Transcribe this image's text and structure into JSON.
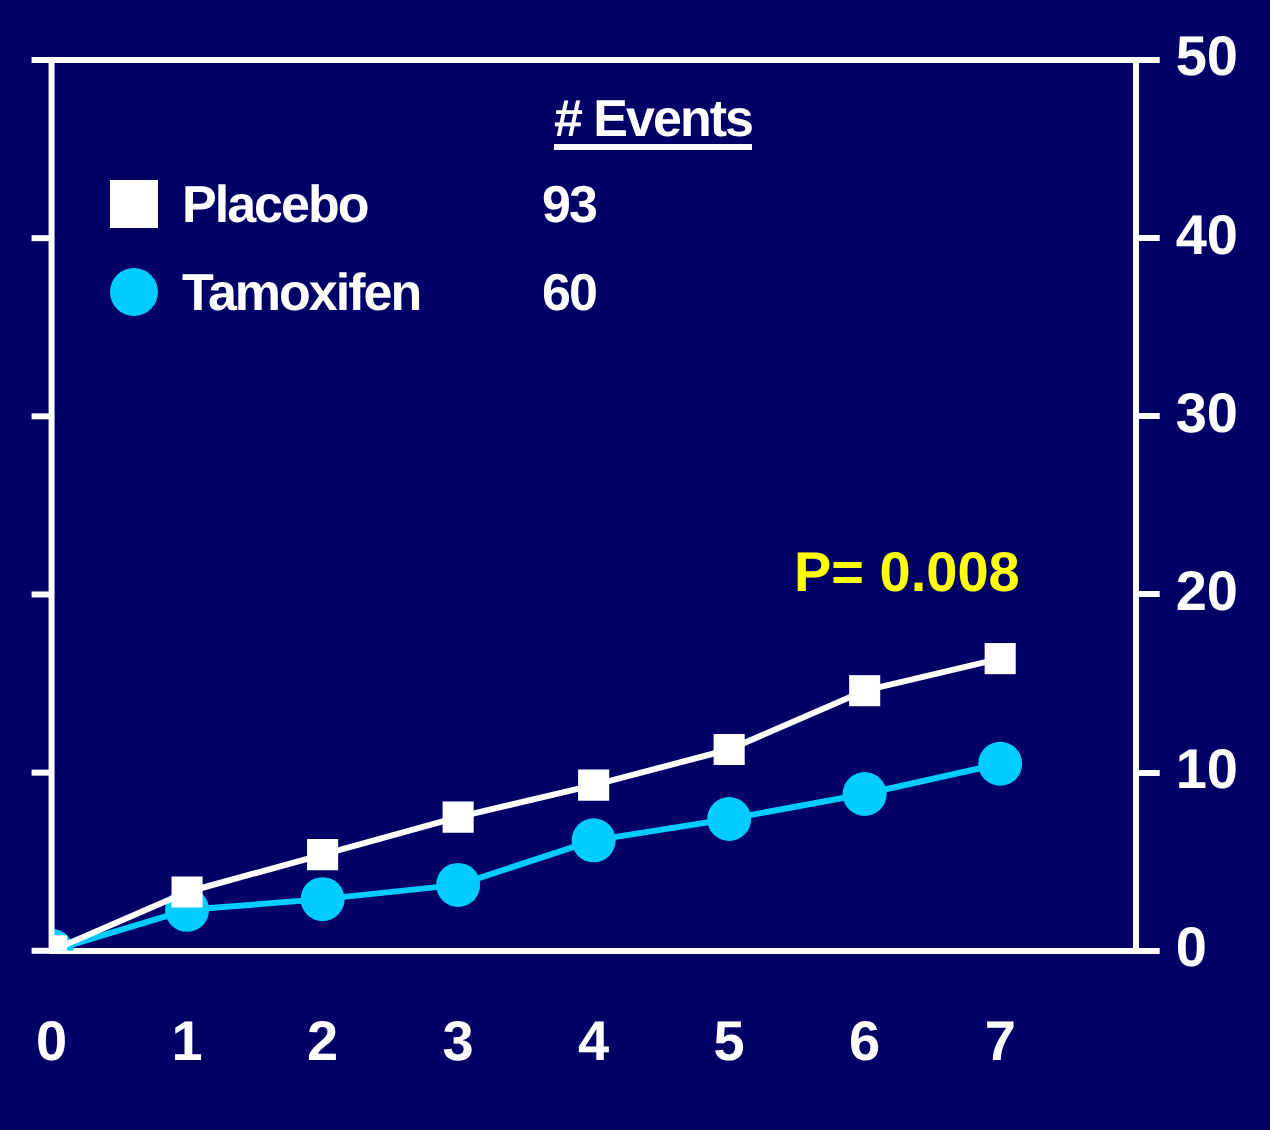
{
  "chart_data": {
    "type": "line",
    "x": [
      0,
      1,
      2,
      3,
      4,
      5,
      6,
      7
    ],
    "series": [
      {
        "name": "Placebo",
        "color": "#ffffff",
        "marker": "square",
        "values": [
          0,
          3.3,
          5.4,
          7.5,
          9.3,
          11.3,
          14.6,
          16.4
        ]
      },
      {
        "name": "Tamoxifen",
        "color": "#00ccff",
        "marker": "circle",
        "values": [
          0,
          2.3,
          2.9,
          3.7,
          6.2,
          7.4,
          8.8,
          10.5
        ]
      }
    ],
    "xlim": [
      0,
      8
    ],
    "xticks": [
      0,
      1,
      2,
      3,
      4,
      5,
      6,
      7,
      {
        "value": 8,
        "label": null
      }
    ],
    "ylim": [
      0,
      50
    ],
    "yticks": [
      0,
      10,
      20,
      30,
      40,
      50
    ],
    "grid": false,
    "legend": "top left",
    "line_style": "solid",
    "annotations": [
      "# Events",
      "93",
      "60",
      "P= 0.008"
    ]
  }
}
